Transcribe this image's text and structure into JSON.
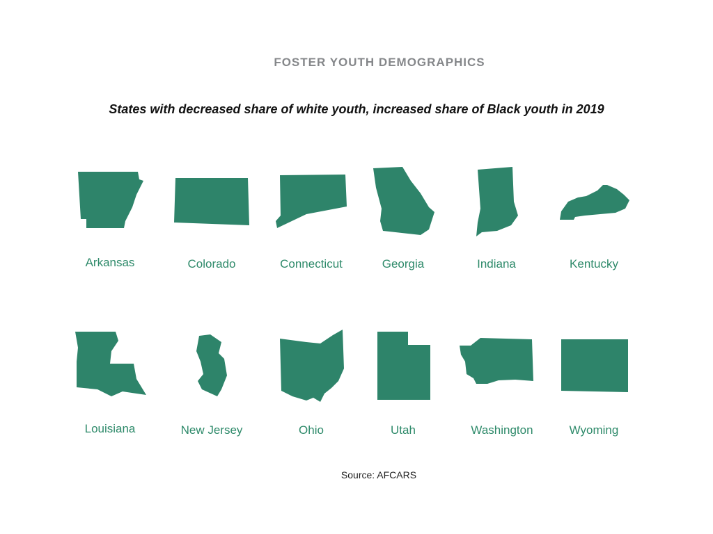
{
  "header": {
    "title": "FOSTER YOUTH DEMOGRAPHICS",
    "subtitle": "States with decreased share of white youth, increased share of Black youth in 2019"
  },
  "states": [
    {
      "name": "Arkansas"
    },
    {
      "name": "Colorado"
    },
    {
      "name": "Connecticut"
    },
    {
      "name": "Georgia"
    },
    {
      "name": "Indiana"
    },
    {
      "name": "Kentucky"
    },
    {
      "name": "Louisiana"
    },
    {
      "name": "New Jersey"
    },
    {
      "name": "Ohio"
    },
    {
      "name": "Utah"
    },
    {
      "name": "Washington"
    },
    {
      "name": "Wyoming"
    }
  ],
  "source": "Source: AFCARS"
}
